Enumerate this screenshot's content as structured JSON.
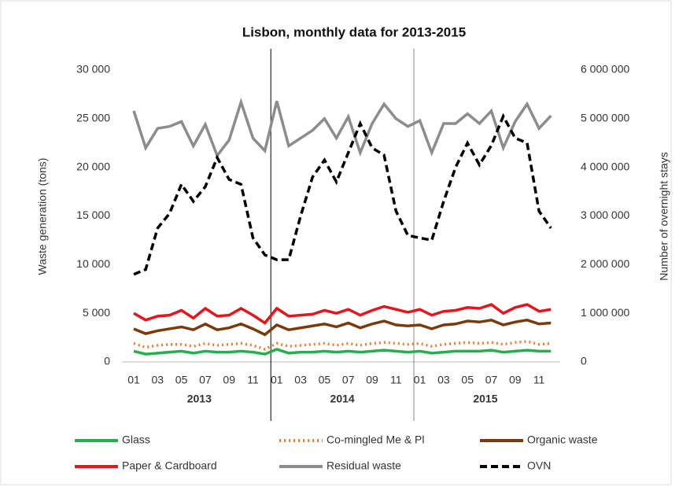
{
  "chart_data": {
    "type": "line",
    "title": "Lisbon, monthly data for 2013-2015",
    "ylabel": "Waste generation (tons)",
    "y2label": "Number of overnight stays",
    "categories": [
      "01",
      null,
      "03",
      null,
      "05",
      null,
      "07",
      null,
      "09",
      null,
      "11",
      null,
      "01",
      null,
      "03",
      null,
      "05",
      null,
      "07",
      null,
      "09",
      null,
      "11",
      null,
      "01",
      null,
      "03",
      null,
      "05",
      null,
      "07",
      null,
      "09",
      null,
      "11",
      null
    ],
    "years": [
      "2013",
      "2014",
      "2015"
    ],
    "ylim": [
      0,
      30000
    ],
    "yticks": [
      0,
      {
        "value": 5000,
        "label": "5 000"
      },
      {
        "value": 10000,
        "label": "10 000"
      },
      {
        "value": 15000,
        "label": "15 000"
      },
      {
        "value": 20000,
        "label": "20 000"
      },
      {
        "value": 25000,
        "label": "25 000"
      },
      {
        "value": 30000,
        "label": "30 000"
      }
    ],
    "y2lim": [
      0,
      6000000
    ],
    "y2ticks": [
      0,
      {
        "value": 1000000,
        "label": "1 000 000"
      },
      {
        "value": 2000000,
        "label": "2 000 000"
      },
      {
        "value": 3000000,
        "label": "3 000 000"
      },
      {
        "value": 4000000,
        "label": "4 000 000"
      },
      {
        "value": 5000000,
        "label": "5 000 000"
      },
      {
        "value": 6000000,
        "label": "6 000 000"
      }
    ],
    "series": [
      {
        "name": "Glass",
        "color": "#22b14c",
        "line_style": "solid",
        "values": [
          1100,
          800,
          900,
          1000,
          1100,
          900,
          1100,
          1000,
          1000,
          1100,
          1000,
          800,
          1300,
          900,
          1000,
          1000,
          1100,
          1000,
          1100,
          1000,
          1100,
          1200,
          1100,
          1000,
          1100,
          900,
          1000,
          1100,
          1100,
          1100,
          1200,
          1000,
          1100,
          1200,
          1100,
          1100
        ]
      },
      {
        "name": "Co-mingled Me & Pl",
        "color": "#ed7d31",
        "line_style": "dotted",
        "values": [
          1900,
          1500,
          1700,
          1800,
          1800,
          1600,
          1900,
          1700,
          1800,
          1900,
          1700,
          1300,
          1900,
          1600,
          1700,
          1800,
          1900,
          1700,
          1900,
          1700,
          1900,
          2000,
          1900,
          1800,
          1900,
          1600,
          1800,
          1900,
          2000,
          1900,
          2000,
          1800,
          2000,
          2100,
          1800,
          1900
        ]
      },
      {
        "name": "Organic waste",
        "color": "#7b3a0c",
        "line_style": "solid",
        "values": [
          3400,
          2900,
          3200,
          3400,
          3600,
          3300,
          3900,
          3300,
          3500,
          3900,
          3400,
          2800,
          3800,
          3300,
          3500,
          3700,
          3900,
          3600,
          4000,
          3500,
          3900,
          4200,
          3800,
          3700,
          3800,
          3400,
          3800,
          3900,
          4200,
          4100,
          4300,
          3800,
          4100,
          4300,
          3900,
          4000
        ]
      },
      {
        "name": "Paper & Cardboard",
        "color": "#e8141c",
        "line_style": "solid",
        "values": [
          5000,
          4300,
          4700,
          4800,
          5300,
          4500,
          5500,
          4700,
          4800,
          5500,
          4800,
          4000,
          5500,
          4700,
          4800,
          4900,
          5300,
          5000,
          5400,
          4800,
          5300,
          5700,
          5400,
          5100,
          5400,
          4800,
          5200,
          5300,
          5600,
          5500,
          5900,
          5000,
          5600,
          5900,
          5200,
          5400
        ]
      },
      {
        "name": "Residual waste",
        "color": "#8c8c8c",
        "line_style": "solid",
        "values": [
          25800,
          22000,
          24000,
          24200,
          24700,
          22200,
          24400,
          21200,
          22800,
          26700,
          23000,
          21700,
          26800,
          22200,
          23000,
          23800,
          25000,
          23000,
          25200,
          21500,
          24500,
          26500,
          25000,
          24200,
          24800,
          21500,
          24500,
          24500,
          25500,
          24500,
          25800,
          22000,
          24700,
          26500,
          24000,
          25300
        ]
      },
      {
        "name": "OVN",
        "color": "#000000",
        "line_style": "dashed",
        "axis": "y2",
        "values": [
          1800000,
          1900000,
          2750000,
          3050000,
          3650000,
          3300000,
          3600000,
          4200000,
          3750000,
          3650000,
          2550000,
          2200000,
          2100000,
          2100000,
          3000000,
          3800000,
          4150000,
          3700000,
          4300000,
          4900000,
          4400000,
          4250000,
          3100000,
          2600000,
          2550000,
          2500000,
          3300000,
          4000000,
          4500000,
          4050000,
          4450000,
          5050000,
          4600000,
          4500000,
          3100000,
          2750000
        ]
      }
    ]
  }
}
